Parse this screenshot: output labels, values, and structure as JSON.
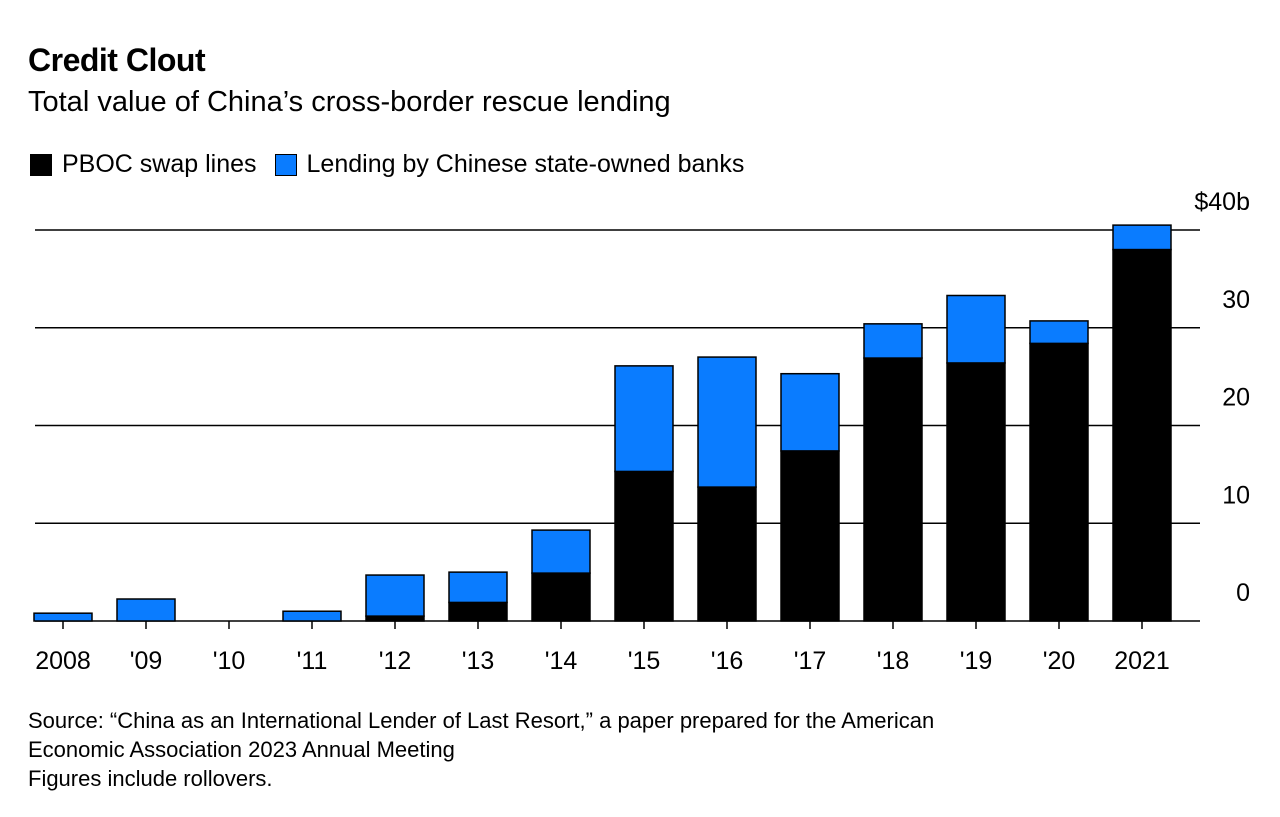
{
  "title": "Credit Clout",
  "subtitle": "Total value of China’s cross-border rescue lending",
  "footnote": {
    "source": "Source: “China as an International Lender of Last Resort,” a paper prepared for the American",
    "source2": "Economic Association 2023 Annual Meeting",
    "note": "Figures include rollovers."
  },
  "chart_data": {
    "type": "bar",
    "stacked": true,
    "categories": [
      "2008",
      "'09",
      "'10",
      "'11",
      "'12",
      "'13",
      "'14",
      "'15",
      "'16",
      "'17",
      "'18",
      "'19",
      "'20",
      "2021"
    ],
    "series": [
      {
        "name": "PBOC swap lines",
        "color": "#000000",
        "values": [
          0,
          0,
          0,
          0,
          0.5,
          1.9,
          4.9,
          15.3,
          13.7,
          17.4,
          26.9,
          26.4,
          28.4,
          38.0
        ]
      },
      {
        "name": "Lending by Chinese state-owned banks",
        "color": "#0a7cff",
        "values": [
          0.8,
          2.25,
          0,
          1.0,
          4.2,
          3.1,
          4.4,
          10.8,
          13.3,
          7.9,
          3.5,
          6.9,
          2.3,
          2.5
        ]
      }
    ],
    "ylim": [
      0,
      40
    ],
    "yticks": [
      0,
      10,
      20,
      30,
      40
    ],
    "ytick_labels": [
      "0",
      "10",
      "20",
      "30",
      "$40b"
    ],
    "grid": true,
    "legend_position": "top-left",
    "y_axis_side": "right"
  }
}
